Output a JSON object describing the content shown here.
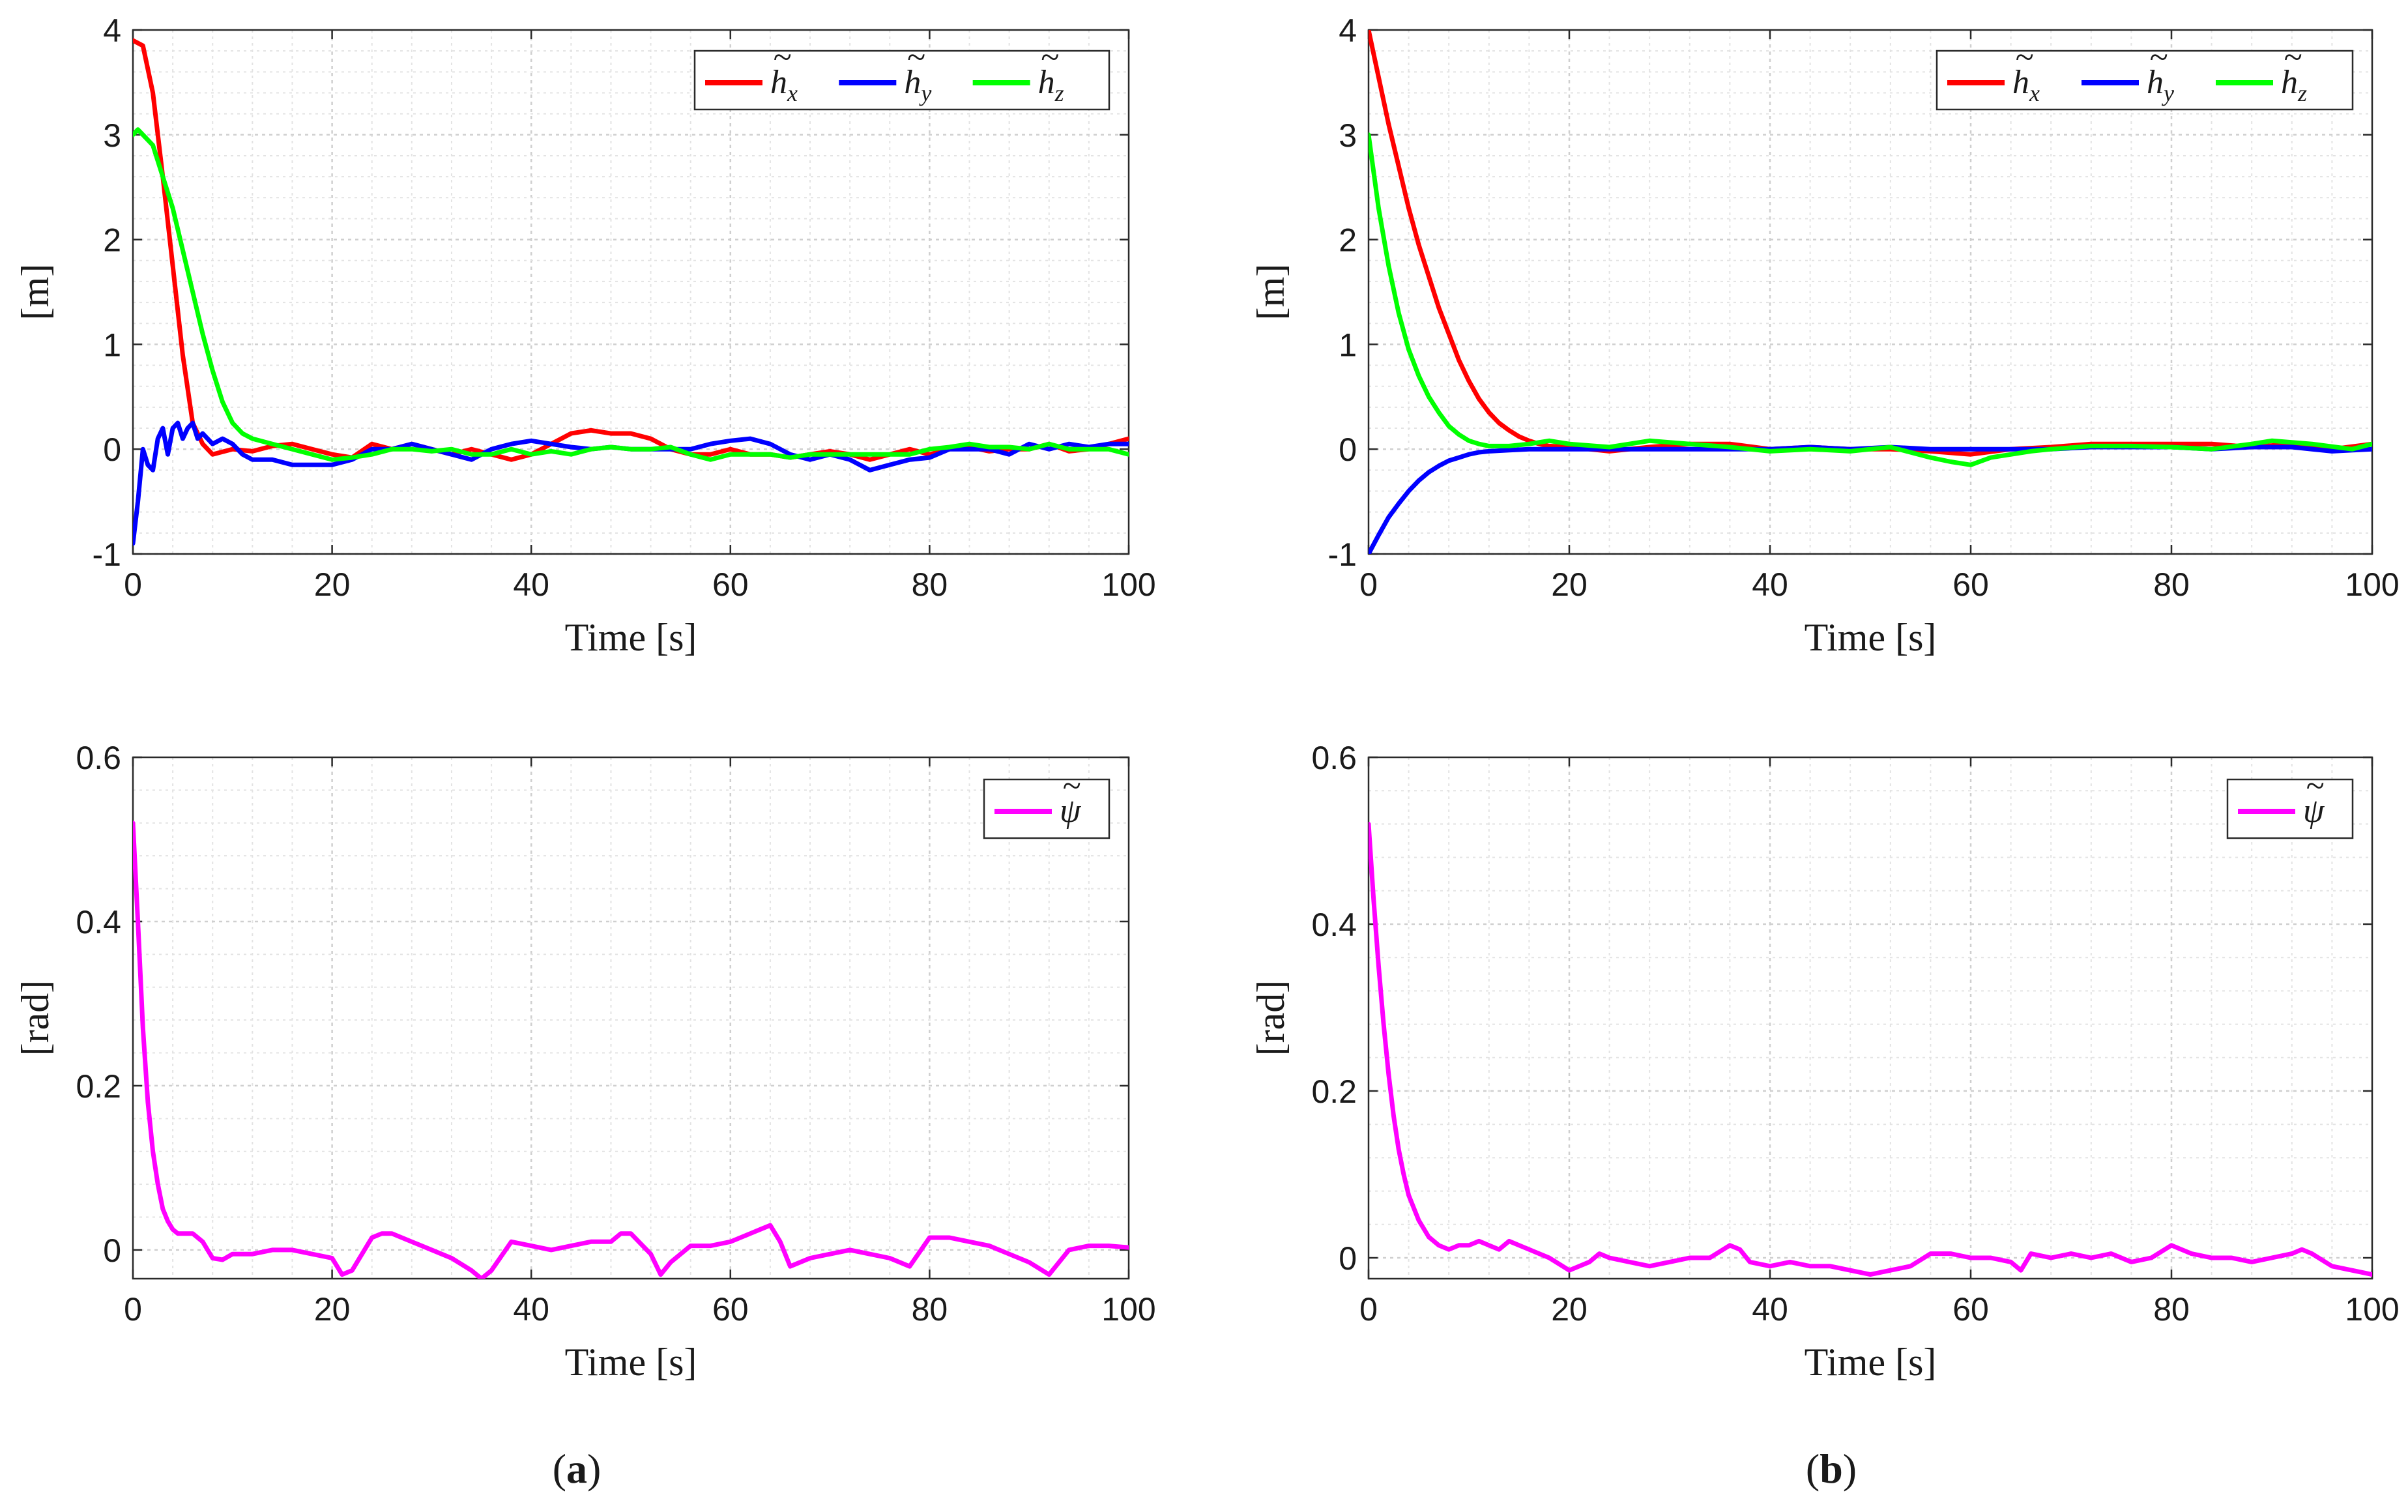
{
  "chart_data": [
    {
      "type": "line",
      "panel": "a",
      "position": "top-left",
      "xlabel": "Time [s]",
      "ylabel": "[m]",
      "xlim": [
        0,
        100
      ],
      "ylim": [
        -1,
        4
      ],
      "xticks": [
        "0",
        "20",
        "40",
        "60",
        "80",
        "100"
      ],
      "yticks": [
        "-1",
        "0",
        "1",
        "2",
        "3",
        "4"
      ],
      "grid": "on (minor dotted)",
      "legend": "top-right, horizontal",
      "series": [
        {
          "name": "h_x",
          "legend_base": "h",
          "legend_sub": "x",
          "color": "#ff0000",
          "x": [
            0,
            1,
            2,
            3,
            4,
            5,
            6,
            7,
            8,
            10,
            12,
            14,
            16,
            18,
            20,
            22,
            24,
            26,
            28,
            30,
            32,
            34,
            36,
            38,
            40,
            42,
            44,
            46,
            48,
            50,
            52,
            54,
            56,
            58,
            60,
            62,
            64,
            66,
            68,
            70,
            72,
            74,
            76,
            78,
            80,
            82,
            84,
            86,
            88,
            90,
            92,
            94,
            96,
            98,
            100
          ],
          "y": [
            3.9,
            3.85,
            3.4,
            2.6,
            1.75,
            0.9,
            0.25,
            0.05,
            -0.05,
            0.0,
            -0.02,
            0.03,
            0.05,
            0.0,
            -0.05,
            -0.08,
            0.05,
            0.0,
            0.05,
            0.0,
            -0.05,
            0.0,
            -0.05,
            -0.1,
            -0.05,
            0.05,
            0.15,
            0.18,
            0.15,
            0.15,
            0.1,
            0.0,
            -0.05,
            -0.05,
            0.0,
            -0.05,
            -0.05,
            -0.08,
            -0.05,
            -0.02,
            -0.05,
            -0.1,
            -0.05,
            0.0,
            -0.05,
            0.0,
            0.02,
            -0.02,
            0.0,
            0.0,
            0.05,
            -0.02,
            0.0,
            0.05,
            0.1
          ]
        },
        {
          "name": "h_y",
          "legend_base": "h",
          "legend_sub": "y",
          "color": "#0000ff",
          "x": [
            0,
            0.5,
            1,
            1.5,
            2,
            2.5,
            3,
            3.5,
            4,
            4.5,
            5,
            5.5,
            6,
            6.5,
            7,
            8,
            9,
            10,
            11,
            12,
            14,
            16,
            18,
            20,
            22,
            24,
            26,
            28,
            30,
            32,
            34,
            36,
            38,
            40,
            42,
            44,
            46,
            48,
            50,
            52,
            54,
            56,
            58,
            60,
            62,
            64,
            66,
            68,
            70,
            72,
            74,
            76,
            78,
            80,
            82,
            84,
            86,
            88,
            90,
            92,
            94,
            96,
            98,
            100
          ],
          "y": [
            -0.9,
            -0.5,
            0.0,
            -0.15,
            -0.2,
            0.1,
            0.2,
            -0.05,
            0.2,
            0.25,
            0.1,
            0.2,
            0.25,
            0.1,
            0.15,
            0.05,
            0.1,
            0.05,
            -0.05,
            -0.1,
            -0.1,
            -0.15,
            -0.15,
            -0.15,
            -0.1,
            0.0,
            0.0,
            0.05,
            0.0,
            -0.05,
            -0.1,
            0.0,
            0.05,
            0.08,
            0.05,
            0.02,
            0.0,
            0.02,
            0.0,
            0.0,
            0.0,
            0.0,
            0.05,
            0.08,
            0.1,
            0.05,
            -0.05,
            -0.1,
            -0.05,
            -0.1,
            -0.2,
            -0.15,
            -0.1,
            -0.08,
            0.0,
            0.0,
            0.0,
            -0.05,
            0.05,
            0.0,
            0.05,
            0.02,
            0.05,
            0.05
          ]
        },
        {
          "name": "h_z",
          "legend_base": "h",
          "legend_sub": "z",
          "color": "#00ff00",
          "x": [
            0,
            0.5,
            1,
            2,
            3,
            4,
            5,
            6,
            7,
            8,
            9,
            10,
            11,
            12,
            14,
            16,
            18,
            20,
            22,
            24,
            26,
            28,
            30,
            32,
            34,
            36,
            38,
            40,
            42,
            44,
            46,
            48,
            50,
            52,
            54,
            56,
            58,
            60,
            62,
            64,
            66,
            68,
            70,
            72,
            74,
            76,
            78,
            80,
            82,
            84,
            86,
            88,
            90,
            92,
            94,
            96,
            98,
            100
          ],
          "y": [
            3.0,
            3.05,
            3.0,
            2.9,
            2.6,
            2.3,
            1.9,
            1.5,
            1.1,
            0.75,
            0.45,
            0.25,
            0.15,
            0.1,
            0.05,
            0.0,
            -0.05,
            -0.1,
            -0.08,
            -0.05,
            0.0,
            0.0,
            -0.02,
            0.0,
            -0.05,
            -0.05,
            0.0,
            -0.05,
            -0.02,
            -0.05,
            0.0,
            0.02,
            0.0,
            0.0,
            0.02,
            -0.05,
            -0.1,
            -0.05,
            -0.05,
            -0.05,
            -0.08,
            -0.05,
            -0.05,
            -0.05,
            -0.05,
            -0.05,
            -0.05,
            0.0,
            0.02,
            0.05,
            0.02,
            0.02,
            0.0,
            0.05,
            0.0,
            0.0,
            0.0,
            -0.05
          ]
        }
      ]
    },
    {
      "type": "line",
      "panel": "b",
      "position": "top-right",
      "xlabel": "Time [s]",
      "ylabel": "[m]",
      "xlim": [
        0,
        100
      ],
      "ylim": [
        -1,
        4
      ],
      "xticks": [
        "0",
        "20",
        "40",
        "60",
        "80",
        "100"
      ],
      "yticks": [
        "-1",
        "0",
        "1",
        "2",
        "3",
        "4"
      ],
      "grid": "on (minor dotted)",
      "legend": "top-right, horizontal",
      "series": [
        {
          "name": "h_x",
          "legend_base": "h",
          "legend_sub": "x",
          "color": "#ff0000",
          "x": [
            0,
            1,
            2,
            3,
            4,
            5,
            6,
            7,
            8,
            9,
            10,
            11,
            12,
            13,
            14,
            15,
            16,
            17,
            18,
            20,
            24,
            28,
            32,
            36,
            40,
            44,
            48,
            52,
            56,
            60,
            64,
            68,
            72,
            76,
            80,
            84,
            88,
            92,
            96,
            100
          ],
          "y": [
            4.0,
            3.55,
            3.1,
            2.7,
            2.3,
            1.95,
            1.65,
            1.35,
            1.1,
            0.85,
            0.65,
            0.48,
            0.35,
            0.25,
            0.18,
            0.12,
            0.08,
            0.05,
            0.03,
            0.02,
            -0.02,
            0.02,
            0.05,
            0.05,
            0.0,
            0.02,
            0.0,
            0.0,
            -0.02,
            -0.05,
            0.0,
            0.02,
            0.05,
            0.05,
            0.05,
            0.05,
            0.02,
            0.05,
            0.0,
            0.05
          ]
        },
        {
          "name": "h_y",
          "legend_base": "h",
          "legend_sub": "y",
          "color": "#0000ff",
          "x": [
            0,
            1,
            2,
            3,
            4,
            5,
            6,
            7,
            8,
            9,
            10,
            11,
            12,
            14,
            16,
            18,
            20,
            24,
            28,
            32,
            36,
            40,
            44,
            48,
            52,
            56,
            60,
            64,
            68,
            72,
            76,
            80,
            84,
            88,
            92,
            96,
            100
          ],
          "y": [
            -1.0,
            -0.82,
            -0.65,
            -0.52,
            -0.4,
            -0.3,
            -0.22,
            -0.16,
            -0.11,
            -0.08,
            -0.05,
            -0.03,
            -0.02,
            -0.01,
            0.0,
            0.0,
            0.0,
            0.0,
            0.0,
            0.0,
            0.0,
            0.0,
            0.02,
            0.0,
            0.02,
            0.0,
            0.0,
            0.0,
            0.0,
            0.02,
            0.02,
            0.02,
            0.0,
            0.02,
            0.02,
            -0.02,
            0.0
          ]
        },
        {
          "name": "h_z",
          "legend_base": "h",
          "legend_sub": "z",
          "color": "#00ff00",
          "x": [
            0,
            1,
            2,
            3,
            4,
            5,
            6,
            7,
            8,
            9,
            10,
            11,
            12,
            14,
            16,
            18,
            20,
            24,
            28,
            32,
            36,
            40,
            44,
            48,
            52,
            56,
            58,
            60,
            62,
            66,
            68,
            72,
            76,
            80,
            84,
            88,
            90,
            94,
            98,
            100
          ],
          "y": [
            3.0,
            2.3,
            1.75,
            1.3,
            0.95,
            0.7,
            0.5,
            0.35,
            0.22,
            0.14,
            0.08,
            0.05,
            0.03,
            0.03,
            0.05,
            0.08,
            0.05,
            0.02,
            0.08,
            0.05,
            0.02,
            -0.02,
            0.0,
            -0.02,
            0.02,
            -0.08,
            -0.12,
            -0.15,
            -0.08,
            -0.02,
            0.0,
            0.03,
            0.03,
            0.02,
            0.0,
            0.05,
            0.08,
            0.05,
            0.0,
            0.05
          ]
        }
      ]
    },
    {
      "type": "line",
      "panel": "a",
      "position": "bottom-left",
      "xlabel": "Time [s]",
      "ylabel": "[rad]",
      "xlim": [
        0,
        100
      ],
      "ylim": [
        -0.035,
        0.6
      ],
      "xticks": [
        "0",
        "20",
        "40",
        "60",
        "80",
        "100"
      ],
      "yticks": [
        "0",
        "0.2",
        "0.4",
        "0.6"
      ],
      "grid": "on (minor dotted)",
      "legend": "top-right",
      "series": [
        {
          "name": "psi",
          "legend_base": "ψ",
          "legend_sub": "",
          "color": "#ff00ff",
          "x": [
            0,
            0.5,
            1,
            1.5,
            2,
            2.5,
            3,
            3.5,
            4,
            4.5,
            5,
            6,
            7,
            8,
            9,
            10,
            12,
            14,
            16,
            18,
            20,
            21,
            22,
            24,
            25,
            26,
            28,
            30,
            32,
            34,
            35,
            36,
            38,
            40,
            42,
            44,
            46,
            48,
            49,
            50,
            52,
            53,
            54,
            56,
            58,
            60,
            62,
            63,
            64,
            65,
            66,
            68,
            70,
            72,
            74,
            76,
            78,
            80,
            82,
            84,
            86,
            88,
            90,
            92,
            94,
            96,
            98,
            100
          ],
          "y": [
            0.52,
            0.4,
            0.27,
            0.18,
            0.12,
            0.08,
            0.05,
            0.035,
            0.025,
            0.02,
            0.02,
            0.02,
            0.01,
            -0.01,
            -0.012,
            -0.005,
            -0.005,
            0.0,
            0.0,
            -0.005,
            -0.01,
            -0.03,
            -0.025,
            0.015,
            0.02,
            0.02,
            0.01,
            0.0,
            -0.01,
            -0.025,
            -0.035,
            -0.025,
            0.01,
            0.005,
            0.0,
            0.005,
            0.01,
            0.01,
            0.02,
            0.02,
            -0.005,
            -0.03,
            -0.015,
            0.005,
            0.005,
            0.01,
            0.02,
            0.025,
            0.03,
            0.01,
            -0.02,
            -0.01,
            -0.005,
            0.0,
            -0.005,
            -0.01,
            -0.02,
            0.015,
            0.015,
            0.01,
            0.005,
            -0.005,
            -0.015,
            -0.03,
            0.0,
            0.005,
            0.005,
            0.003
          ]
        }
      ]
    },
    {
      "type": "line",
      "panel": "b",
      "position": "bottom-right",
      "xlabel": "Time [s]",
      "ylabel": "[rad]",
      "xlim": [
        0,
        100
      ],
      "ylim": [
        -0.025,
        0.6
      ],
      "xticks": [
        "0",
        "20",
        "40",
        "60",
        "80",
        "100"
      ],
      "yticks": [
        "0",
        "0.2",
        "0.4",
        "0.6"
      ],
      "grid": "on (minor dotted)",
      "legend": "top-right",
      "series": [
        {
          "name": "psi",
          "legend_base": "ψ",
          "legend_sub": "",
          "color": "#ff00ff",
          "x": [
            0,
            0.5,
            1,
            1.5,
            2,
            2.5,
            3,
            3.5,
            4,
            5,
            6,
            7,
            8,
            9,
            10,
            11,
            12,
            13,
            14,
            16,
            18,
            20,
            22,
            23,
            24,
            26,
            28,
            30,
            32,
            34,
            36,
            37,
            38,
            40,
            42,
            44,
            46,
            48,
            50,
            52,
            54,
            56,
            58,
            60,
            62,
            64,
            65,
            66,
            68,
            70,
            72,
            74,
            76,
            78,
            80,
            82,
            84,
            86,
            88,
            90,
            92,
            93,
            94,
            96,
            98,
            100
          ],
          "y": [
            0.52,
            0.43,
            0.35,
            0.28,
            0.22,
            0.17,
            0.13,
            0.1,
            0.075,
            0.045,
            0.025,
            0.015,
            0.01,
            0.015,
            0.015,
            0.02,
            0.015,
            0.01,
            0.02,
            0.01,
            0.0,
            -0.015,
            -0.005,
            0.005,
            0.0,
            -0.005,
            -0.01,
            -0.005,
            0.0,
            0.0,
            0.015,
            0.01,
            -0.005,
            -0.01,
            -0.005,
            -0.01,
            -0.01,
            -0.015,
            -0.02,
            -0.015,
            -0.01,
            0.005,
            0.005,
            0.0,
            0.0,
            -0.005,
            -0.015,
            0.005,
            0.0,
            0.005,
            0.0,
            0.005,
            -0.005,
            0.0,
            0.015,
            0.005,
            0.0,
            0.0,
            -0.005,
            0.0,
            0.005,
            0.01,
            0.005,
            -0.01,
            -0.015,
            -0.02
          ]
        }
      ]
    }
  ],
  "captions": [
    {
      "letter": "a",
      "open": "(",
      "close": ")"
    },
    {
      "letter": "b",
      "open": "(",
      "close": ")"
    }
  ]
}
